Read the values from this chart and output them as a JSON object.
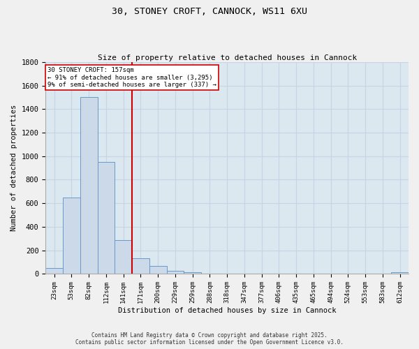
{
  "title_line1": "30, STONEY CROFT, CANNOCK, WS11 6XU",
  "title_line2": "Size of property relative to detached houses in Cannock",
  "xlabel": "Distribution of detached houses by size in Cannock",
  "ylabel": "Number of detached properties",
  "categories": [
    "23sqm",
    "53sqm",
    "82sqm",
    "112sqm",
    "141sqm",
    "171sqm",
    "200sqm",
    "229sqm",
    "259sqm",
    "288sqm",
    "318sqm",
    "347sqm",
    "377sqm",
    "406sqm",
    "435sqm",
    "465sqm",
    "494sqm",
    "524sqm",
    "553sqm",
    "583sqm",
    "612sqm"
  ],
  "values": [
    50,
    650,
    1500,
    950,
    290,
    135,
    70,
    25,
    15,
    5,
    2,
    2,
    2,
    1,
    1,
    1,
    1,
    0,
    0,
    0,
    15
  ],
  "bar_color": "#ccd9e8",
  "bar_edge_color": "#6699cc",
  "vline_x": 4.5,
  "vline_color": "#cc0000",
  "annotation_text": "30 STONEY CROFT: 157sqm\n← 91% of detached houses are smaller (3,295)\n9% of semi-detached houses are larger (337) →",
  "annotation_box_color": "#ffffff",
  "annotation_box_edge": "#cc0000",
  "ylim": [
    0,
    1800
  ],
  "yticks": [
    0,
    200,
    400,
    600,
    800,
    1000,
    1200,
    1400,
    1600,
    1800
  ],
  "grid_color": "#c8d4e4",
  "plot_bg_color": "#dce8f0",
  "fig_bg_color": "#f0f0f0",
  "footer_line1": "Contains HM Land Registry data © Crown copyright and database right 2025.",
  "footer_line2": "Contains public sector information licensed under the Open Government Licence v3.0."
}
